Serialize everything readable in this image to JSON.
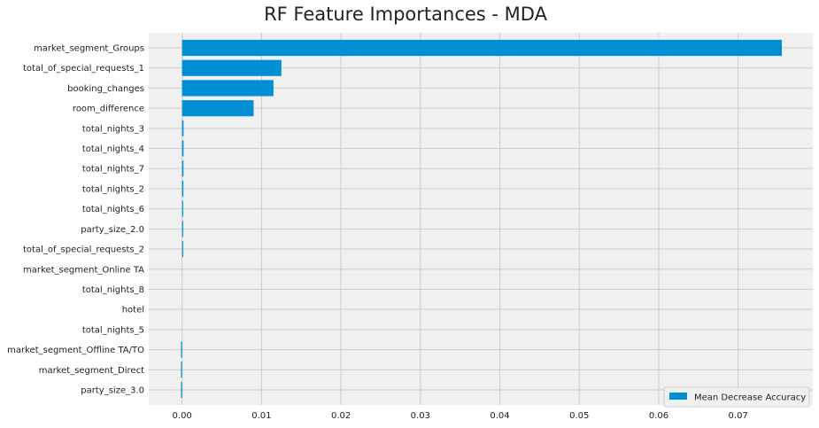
{
  "chart_data": {
    "type": "bar",
    "orientation": "horizontal",
    "title": "RF Feature Importances - MDA",
    "xlabel": "",
    "ylabel": "",
    "categories": [
      "market_segment_Groups",
      "total_of_special_requests_1",
      "booking_changes",
      "room_difference",
      "total_nights_3",
      "total_nights_4",
      "total_nights_7",
      "total_nights_2",
      "total_nights_6",
      "party_size_2.0",
      "total_of_special_requests_2",
      "market_segment_Online TA",
      "total_nights_8",
      "hotel",
      "total_nights_5",
      "market_segment_Offline TA/TO",
      "market_segment_Direct",
      "party_size_3.0"
    ],
    "series": [
      {
        "name": "Mean Decrease Accuracy",
        "values": [
          0.0755,
          0.0125,
          0.0115,
          0.009,
          0.00018,
          0.00018,
          0.00017,
          0.00016,
          0.00011,
          9e-05,
          7e-05,
          0.0,
          0.0,
          0.0,
          0.0,
          -0.0001,
          -0.00012,
          -0.00012
        ]
      }
    ],
    "xlim": [
      -0.0042,
      0.0794
    ],
    "xticks": [
      0.0,
      0.01,
      0.02,
      0.03,
      0.04,
      0.05,
      0.06,
      0.07
    ],
    "xtick_labels": [
      "0.00",
      "0.01",
      "0.02",
      "0.03",
      "0.04",
      "0.05",
      "0.06",
      "0.07"
    ],
    "grid": true,
    "legend_position": "bottom-right",
    "colors": {
      "bar": "#008fd5",
      "plot_background": "#f0f0f0",
      "grid": "#cbcbcb",
      "page_background": "#ffffff"
    }
  }
}
